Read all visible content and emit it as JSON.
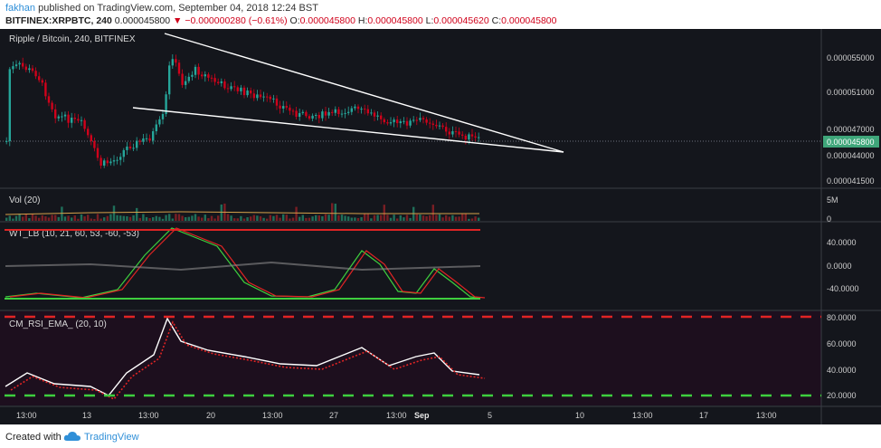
{
  "header": {
    "author": "fakhan",
    "published_text": "published on TradingView.com, September 04, 2018 12:24 BST",
    "symbol": "BITFINEX:XRPBTC, 240",
    "last": "0.000045800",
    "change": "−0.000000280 (−0.61%)",
    "o_label": "O:",
    "o_value": "0.000045800",
    "h_label": "H:",
    "h_value": "0.000045800",
    "l_label": "L:",
    "l_value": "0.000045620",
    "c_label": "C:",
    "c_value": "0.000045800"
  },
  "main_pane": {
    "title": "Ripple / Bitcoin, 240, BITFINEX",
    "price_labels": [
      "0.000055000",
      "0.000051000",
      "0.000047000",
      "0.000044000",
      "0.000041500"
    ],
    "current_price": "0.000045800"
  },
  "vol_pane": {
    "title": "Vol (20)",
    "labels": [
      "5M",
      "0"
    ]
  },
  "wt_pane": {
    "title": "WT_LB (10, 21, 60, 53, -60, -53)",
    "labels": [
      "40.0000",
      "0.0000",
      "-40.0000"
    ]
  },
  "rsi_pane": {
    "title": "CM_RSI_EMA_ (20, 10)",
    "labels": [
      "80.0000",
      "60.0000",
      "40.0000",
      "20.0000"
    ]
  },
  "time_axis": [
    "13:00",
    "13",
    "13:00",
    "20",
    "13:00",
    "27",
    "13:00",
    "Sep",
    "5",
    "10",
    "13:00",
    "17",
    "13:00"
  ],
  "footer": {
    "created_with": "Created with",
    "brand": "TradingView"
  },
  "colors": {
    "up": "#26a69a",
    "down": "#d0021b",
    "background": "#14161c",
    "accent": "#2f8fd8"
  },
  "icons": {
    "logo": "tradingview-cloud-icon"
  }
}
